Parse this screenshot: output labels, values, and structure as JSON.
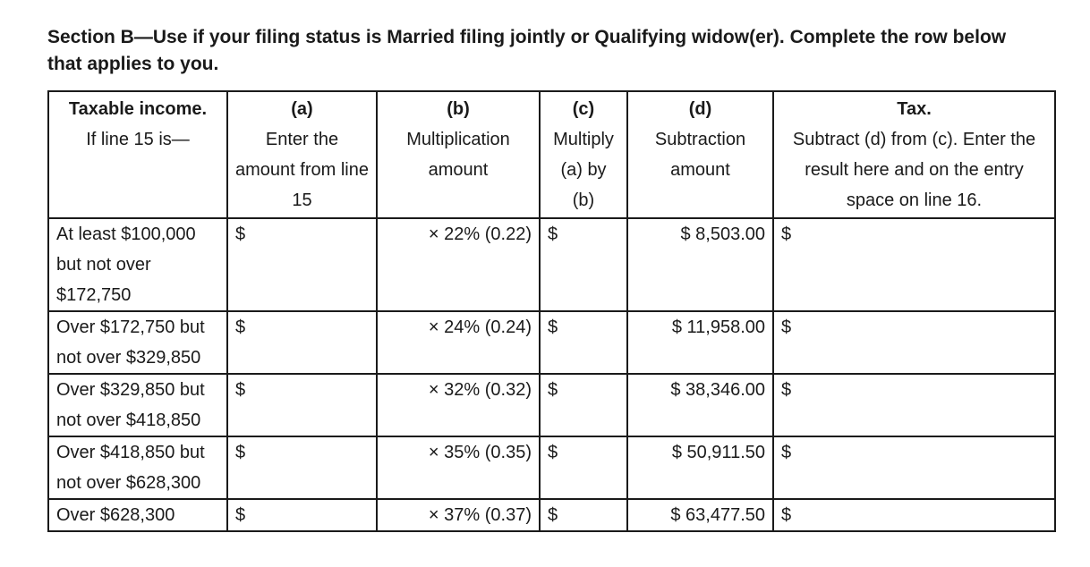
{
  "heading": "Section B—Use if your filing status is Married filing jointly or Qualifying widow(er). Complete the row below that applies to you.",
  "columns": [
    {
      "title": "Taxable income.",
      "subtitle": "If line 15 is—"
    },
    {
      "title": "(a)",
      "subtitle": "Enter the amount from line 15"
    },
    {
      "title": "(b)",
      "subtitle": "Multiplication amount"
    },
    {
      "title": "(c)",
      "subtitle": "Multiply (a) by (b)"
    },
    {
      "title": "(d)",
      "subtitle": "Subtraction amount"
    },
    {
      "title": "Tax.",
      "subtitle": "Subtract (d) from (c). Enter the result here and on the entry space on line 16."
    }
  ],
  "rows": [
    {
      "range": "At least $100,000 but not over $172,750",
      "a": "$",
      "b": "× 22% (0.22)",
      "c": "$",
      "d": "$ 8,503.00",
      "tax": "$"
    },
    {
      "range": "Over $172,750 but not over $329,850",
      "a": "$",
      "b": "× 24% (0.24)",
      "c": "$",
      "d": "$ 11,958.00",
      "tax": "$"
    },
    {
      "range": "Over $329,850 but not over $418,850",
      "a": "$",
      "b": "× 32% (0.32)",
      "c": "$",
      "d": "$ 38,346.00",
      "tax": "$"
    },
    {
      "range": "Over $418,850 but not over $628,300",
      "a": "$",
      "b": "× 35% (0.35)",
      "c": "$",
      "d": "$ 50,911.50",
      "tax": "$"
    },
    {
      "range": "Over $628,300",
      "a": "$",
      "b": "× 37% (0.37)",
      "c": "$",
      "d": "$ 63,477.50",
      "tax": "$"
    }
  ]
}
